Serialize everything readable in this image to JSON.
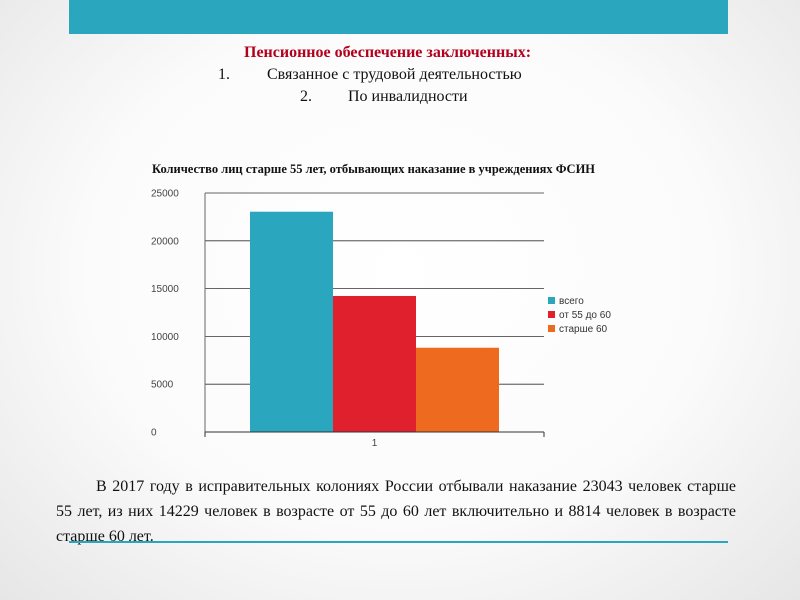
{
  "heading": {
    "title": "Пенсионное обеспечение заключенных:",
    "items": [
      {
        "num": "1.",
        "text": "Связанное с трудовой деятельностью"
      },
      {
        "num": "2.",
        "text": "По инвалидности"
      }
    ]
  },
  "colors": {
    "accent": "#2ba6bf",
    "title_red": "#b3001e"
  },
  "chart_data": {
    "type": "bar",
    "title": "Количество лиц старше 55 лет, отбывающих наказание в учреждениях ФСИН",
    "categories": [
      "1"
    ],
    "series": [
      {
        "name": "всего",
        "values": [
          23043
        ],
        "color": "#2ba6bf"
      },
      {
        "name": "от 55 до 60",
        "values": [
          14229
        ],
        "color": "#e0202c"
      },
      {
        "name": "старше 60",
        "values": [
          8814
        ],
        "color": "#ee6a1f"
      }
    ],
    "y_ticks": [
      "0",
      "5000",
      "10000",
      "15000",
      "20000",
      "25000"
    ],
    "ylim": [
      0,
      25000
    ],
    "grid": true,
    "legend": "right"
  },
  "body_text": "В 2017 году в исправительных колониях России отбывали наказание 23043 человек старше 55 лет, из них 14229 человек в возрасте от 55 до 60 лет включительно и 8814 человек в возрасте старше 60 лет."
}
